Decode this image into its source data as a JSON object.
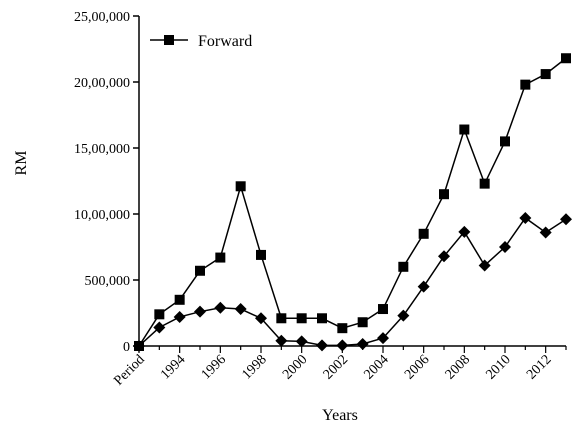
{
  "chart_data": {
    "type": "line",
    "xlabel": "Years",
    "ylabel": "RM",
    "ylim": [
      0,
      2500000
    ],
    "y_ticks": [
      0,
      500000,
      1000000,
      1500000,
      2000000,
      2500000
    ],
    "y_tick_labels": [
      "0",
      "500,000",
      "10,00,000",
      "15,00,000",
      "20,00,000",
      "25,00,000"
    ],
    "x_tick_labels": [
      "Period",
      "1994",
      "1996",
      "1998",
      "2000",
      "2002",
      "2004",
      "2006",
      "2008",
      "2010",
      "2012"
    ],
    "x_tick_every": 2,
    "categories": [
      "Period",
      "1993",
      "1994",
      "1995",
      "1996",
      "1997",
      "1998",
      "1999",
      "2000",
      "2001",
      "2002",
      "2003",
      "2004",
      "2005",
      "2006",
      "2007",
      "2008",
      "2009",
      "2010",
      "2011",
      "2012",
      "2013"
    ],
    "legend_position": "top-left",
    "series": [
      {
        "name": "Forward",
        "marker": "square",
        "values": [
          0,
          240000,
          350000,
          570000,
          670000,
          1210000,
          690000,
          210000,
          210000,
          210000,
          135000,
          180000,
          280000,
          600000,
          850000,
          1150000,
          1640000,
          1230000,
          1550000,
          1980000,
          2060000,
          2180000
        ]
      },
      {
        "marker": "diamond",
        "values": [
          0,
          140000,
          220000,
          260000,
          290000,
          280000,
          210000,
          40000,
          35000,
          5000,
          5000,
          15000,
          60000,
          230000,
          450000,
          680000,
          865000,
          610000,
          750000,
          970000,
          860000,
          960000
        ]
      }
    ]
  }
}
